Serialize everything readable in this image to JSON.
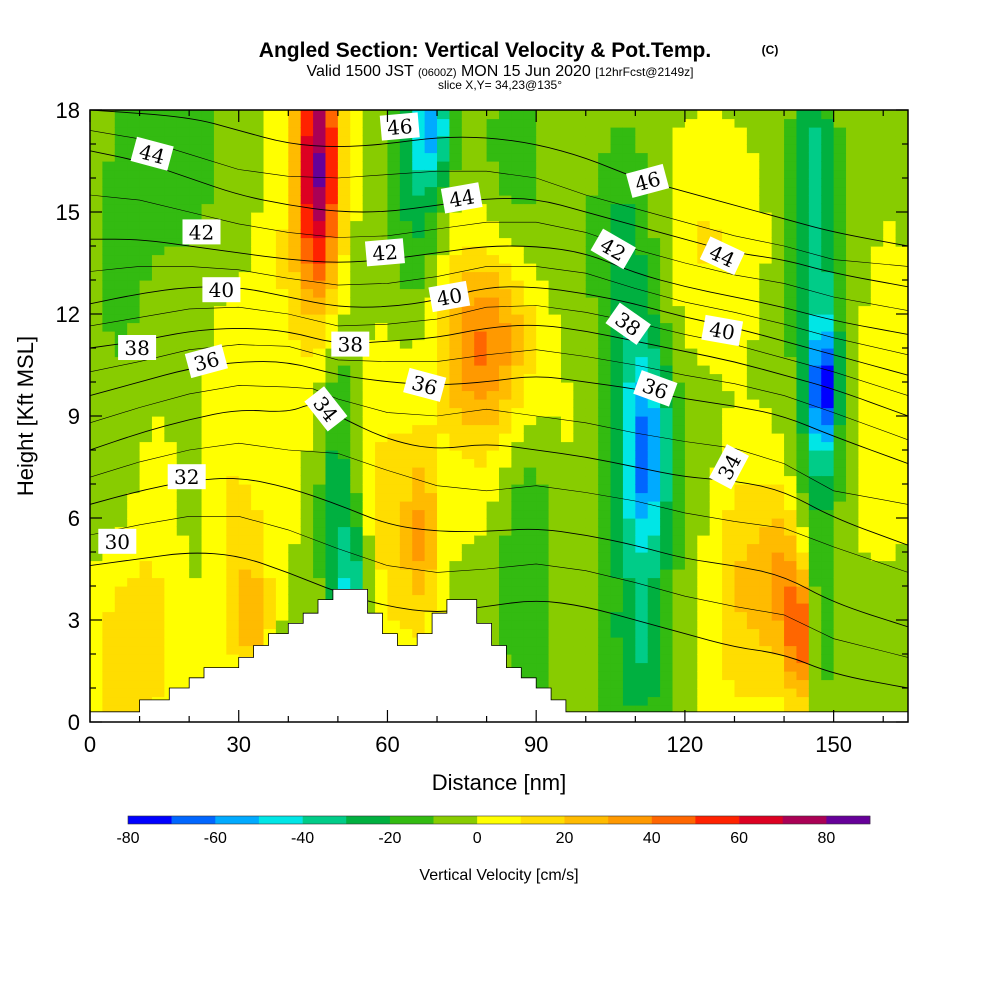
{
  "title": {
    "main": "Angled Section: Vertical Velocity & Pot.Temp.",
    "copyright": "(C)",
    "valid_prefix": "Valid 1500 JST",
    "utc": "(0600Z)",
    "valid_date": "MON 15 Jun 2020",
    "forecast": "[12hrFcst@2149z]",
    "slice": "slice X,Y= 34,23@135°"
  },
  "chart_data": {
    "type": "heatmap",
    "xlabel": "Distance [nm]",
    "ylabel": "Height [Kft MSL]",
    "xlim": [
      0,
      165
    ],
    "ylim": [
      0,
      18
    ],
    "x_ticks": [
      0,
      30,
      60,
      90,
      120,
      150
    ],
    "y_ticks": [
      0,
      3,
      6,
      9,
      12,
      15,
      18
    ],
    "colorbar": {
      "label": "Vertical Velocity [cm/s]",
      "bounds": [
        -80,
        -70,
        -60,
        -50,
        -40,
        -30,
        -20,
        -10,
        0,
        10,
        20,
        30,
        40,
        50,
        60,
        70,
        80,
        90
      ],
      "colors": [
        "#0000ff",
        "#0066ff",
        "#00aaff",
        "#00e6e6",
        "#00cc88",
        "#00b040",
        "#33bb11",
        "#88cc00",
        "#ffff00",
        "#ffdd00",
        "#ffbb00",
        "#ff9900",
        "#ff6600",
        "#ff2200",
        "#dd0022",
        "#aa0055",
        "#660099"
      ],
      "tick_values": [
        -80,
        -60,
        -40,
        -20,
        0,
        20,
        40,
        60,
        80
      ]
    },
    "velocity_features": [
      {
        "x": 46,
        "y": 17.2,
        "sx": 3,
        "sy": 2.6,
        "value": 58
      },
      {
        "x": 46,
        "y": 14.8,
        "sx": 3.5,
        "sy": 2.5,
        "value": 38
      },
      {
        "x": 66,
        "y": 15.5,
        "sx": 4,
        "sy": 3,
        "value": -25
      },
      {
        "x": 69,
        "y": 17.5,
        "sx": 3,
        "sy": 1.2,
        "value": -40
      },
      {
        "x": 85,
        "y": 16.5,
        "sx": 5,
        "sy": 2,
        "value": -12
      },
      {
        "x": 80,
        "y": 11.2,
        "sx": 7,
        "sy": 1.8,
        "value": 32
      },
      {
        "x": 78,
        "y": 9.5,
        "sx": 8,
        "sy": 3,
        "value": 15
      },
      {
        "x": 112,
        "y": 8,
        "sx": 3.5,
        "sy": 2.2,
        "value": -45
      },
      {
        "x": 110,
        "y": 6.5,
        "sx": 5,
        "sy": 4.5,
        "value": -20
      },
      {
        "x": 108,
        "y": 14,
        "sx": 4,
        "sy": 2.5,
        "value": -15
      },
      {
        "x": 132,
        "y": 4.5,
        "sx": 5,
        "sy": 2.7,
        "value": 25
      },
      {
        "x": 140,
        "y": 4,
        "sx": 3,
        "sy": 2,
        "value": 30
      },
      {
        "x": 143,
        "y": 2.5,
        "sx": 1.4,
        "sy": 1.5,
        "value": 52
      },
      {
        "x": 148,
        "y": 9.8,
        "sx": 1.8,
        "sy": 1.3,
        "value": -55
      },
      {
        "x": 147,
        "y": 9.5,
        "sx": 3.5,
        "sy": 4.5,
        "value": -28
      },
      {
        "x": 146,
        "y": 16.5,
        "sx": 3,
        "sy": 2.5,
        "value": -22
      },
      {
        "x": 50,
        "y": 7,
        "sx": 3,
        "sy": 3,
        "value": -25
      },
      {
        "x": 53,
        "y": 3.8,
        "sx": 2.5,
        "sy": 1.5,
        "value": -35
      },
      {
        "x": 60,
        "y": 6,
        "sx": 5,
        "sy": 3.3,
        "value": 18
      },
      {
        "x": 67,
        "y": 5.5,
        "sx": 2.5,
        "sy": 1.7,
        "value": 30
      },
      {
        "x": 88,
        "y": 5.5,
        "sx": 4,
        "sy": 3,
        "value": -20
      },
      {
        "x": 20,
        "y": 16,
        "sx": 6,
        "sy": 2.5,
        "value": -12
      },
      {
        "x": 8,
        "y": 14,
        "sx": 6,
        "sy": 4,
        "value": -12
      },
      {
        "x": 28,
        "y": 7,
        "sx": 4,
        "sy": 4,
        "value": 12
      },
      {
        "x": 13,
        "y": 5.5,
        "sx": 4,
        "sy": 4,
        "value": 14
      },
      {
        "x": 33,
        "y": 3,
        "sx": 3,
        "sy": 2,
        "value": 24
      },
      {
        "x": 6,
        "y": 2,
        "sx": 4,
        "sy": 2,
        "value": 18
      },
      {
        "x": 124,
        "y": 14,
        "sx": 6,
        "sy": 2.5,
        "value": 10
      },
      {
        "x": 78,
        "y": 2,
        "sx": 4,
        "sy": 1,
        "value": -6
      },
      {
        "x": 160,
        "y": 12,
        "sx": 5,
        "sy": 4,
        "value": 8
      },
      {
        "x": 112,
        "y": 2,
        "sx": 4,
        "sy": 1.5,
        "value": -15
      },
      {
        "x": 38,
        "y": 13,
        "sx": 4,
        "sy": 3,
        "value": 12
      }
    ],
    "theta_contours": [
      {
        "value": 30,
        "points": [
          [
            0,
            4.6
          ],
          [
            10,
            4.8
          ],
          [
            20,
            5.0
          ],
          [
            30,
            4.9
          ],
          [
            40,
            4.4
          ],
          [
            50,
            3.8
          ],
          [
            60,
            3.4
          ],
          [
            70,
            3.2
          ],
          [
            80,
            3.4
          ],
          [
            90,
            3.6
          ],
          [
            100,
            3.4
          ],
          [
            110,
            3.0
          ],
          [
            120,
            2.6
          ],
          [
            130,
            2.2
          ],
          [
            140,
            2.0
          ],
          [
            150,
            1.4
          ],
          [
            165,
            1.0
          ]
        ],
        "label": true
      },
      {
        "value": 32,
        "points": [
          [
            0,
            6.4
          ],
          [
            10,
            6.8
          ],
          [
            20,
            7.1
          ],
          [
            30,
            7.2
          ],
          [
            40,
            6.9
          ],
          [
            50,
            6.4
          ],
          [
            60,
            5.8
          ],
          [
            70,
            5.6
          ],
          [
            80,
            5.6
          ],
          [
            90,
            5.7
          ],
          [
            100,
            5.5
          ],
          [
            110,
            5.2
          ],
          [
            120,
            4.8
          ],
          [
            130,
            4.6
          ],
          [
            140,
            4.3
          ],
          [
            150,
            3.5
          ],
          [
            165,
            2.8
          ]
        ],
        "label": true
      },
      {
        "value": 34,
        "points": [
          [
            0,
            8.0
          ],
          [
            10,
            8.5
          ],
          [
            20,
            8.9
          ],
          [
            30,
            9.2
          ],
          [
            40,
            9.1
          ],
          [
            45,
            9.4
          ],
          [
            50,
            9.0
          ],
          [
            60,
            8.3
          ],
          [
            70,
            8.0
          ],
          [
            80,
            8.2
          ],
          [
            90,
            8.0
          ],
          [
            100,
            7.8
          ],
          [
            110,
            7.5
          ],
          [
            120,
            7.2
          ],
          [
            130,
            7.1
          ],
          [
            140,
            6.8
          ],
          [
            150,
            6.0
          ],
          [
            165,
            5.2
          ]
        ],
        "label": true
      },
      {
        "value": 36,
        "points": [
          [
            0,
            9.6
          ],
          [
            10,
            10.0
          ],
          [
            20,
            10.4
          ],
          [
            30,
            10.6
          ],
          [
            40,
            10.6
          ],
          [
            50,
            10.2
          ],
          [
            60,
            10.0
          ],
          [
            70,
            9.9
          ],
          [
            80,
            10.0
          ],
          [
            90,
            10.2
          ],
          [
            100,
            10.0
          ],
          [
            110,
            9.8
          ],
          [
            120,
            9.5
          ],
          [
            130,
            9.3
          ],
          [
            140,
            9.0
          ],
          [
            150,
            8.4
          ],
          [
            165,
            7.6
          ]
        ],
        "label": true
      },
      {
        "value": 38,
        "points": [
          [
            0,
            11.0
          ],
          [
            10,
            11.2
          ],
          [
            20,
            11.5
          ],
          [
            30,
            11.6
          ],
          [
            40,
            11.5
          ],
          [
            50,
            11.1
          ],
          [
            60,
            11.2
          ],
          [
            70,
            11.3
          ],
          [
            80,
            11.6
          ],
          [
            90,
            11.7
          ],
          [
            100,
            11.5
          ],
          [
            110,
            11.2
          ],
          [
            120,
            10.9
          ],
          [
            130,
            10.6
          ],
          [
            140,
            10.2
          ],
          [
            150,
            9.8
          ],
          [
            165,
            9.0
          ]
        ],
        "label": true
      },
      {
        "value": 40,
        "points": [
          [
            0,
            12.3
          ],
          [
            10,
            12.6
          ],
          [
            20,
            12.8
          ],
          [
            30,
            12.8
          ],
          [
            40,
            12.5
          ],
          [
            50,
            12.2
          ],
          [
            60,
            12.2
          ],
          [
            70,
            12.4
          ],
          [
            80,
            12.8
          ],
          [
            90,
            12.8
          ],
          [
            100,
            12.6
          ],
          [
            110,
            12.3
          ],
          [
            120,
            11.9
          ],
          [
            130,
            11.6
          ],
          [
            140,
            11.2
          ],
          [
            150,
            10.8
          ],
          [
            165,
            10.2
          ]
        ],
        "label": true
      },
      {
        "value": 42,
        "points": [
          [
            0,
            14.2
          ],
          [
            10,
            14.2
          ],
          [
            20,
            14.0
          ],
          [
            30,
            13.8
          ],
          [
            40,
            13.6
          ],
          [
            50,
            13.5
          ],
          [
            60,
            13.6
          ],
          [
            70,
            13.8
          ],
          [
            80,
            14.0
          ],
          [
            90,
            14.0
          ],
          [
            100,
            13.8
          ],
          [
            110,
            13.2
          ],
          [
            120,
            12.8
          ],
          [
            130,
            12.5
          ],
          [
            140,
            12.2
          ],
          [
            150,
            11.8
          ],
          [
            165,
            11.4
          ]
        ],
        "label": true
      },
      {
        "value": 44,
        "points": [
          [
            0,
            16.8
          ],
          [
            10,
            16.5
          ],
          [
            20,
            16.0
          ],
          [
            30,
            15.5
          ],
          [
            40,
            15.2
          ],
          [
            50,
            15.0
          ],
          [
            60,
            15.0
          ],
          [
            70,
            15.2
          ],
          [
            80,
            15.4
          ],
          [
            90,
            15.4
          ],
          [
            100,
            15.0
          ],
          [
            110,
            14.6
          ],
          [
            120,
            14.2
          ],
          [
            130,
            13.8
          ],
          [
            140,
            13.6
          ],
          [
            150,
            13.2
          ],
          [
            165,
            12.8
          ]
        ],
        "label": true
      },
      {
        "value": 46,
        "points": [
          [
            0,
            18.0
          ],
          [
            20,
            17.8
          ],
          [
            30,
            17.4
          ],
          [
            40,
            17.0
          ],
          [
            50,
            16.9
          ],
          [
            60,
            17.0
          ],
          [
            70,
            17.2
          ],
          [
            80,
            17.2
          ],
          [
            90,
            17.0
          ],
          [
            100,
            16.6
          ],
          [
            110,
            16.0
          ],
          [
            120,
            15.6
          ],
          [
            130,
            15.2
          ],
          [
            140,
            14.8
          ],
          [
            150,
            14.4
          ],
          [
            165,
            14.0
          ]
        ],
        "label": true
      }
    ],
    "contour_labels": [
      {
        "text": "30",
        "x": 5.5,
        "y": 5.3,
        "angle": 0
      },
      {
        "text": "32",
        "x": 19.5,
        "y": 7.2,
        "angle": 0
      },
      {
        "text": "34",
        "x": 47.5,
        "y": 9.2,
        "angle": 52
      },
      {
        "text": "36",
        "x": 23.5,
        "y": 10.6,
        "angle": -15
      },
      {
        "text": "38",
        "x": 9.5,
        "y": 11.0,
        "angle": 0
      },
      {
        "text": "40",
        "x": 26.5,
        "y": 12.7,
        "angle": 0
      },
      {
        "text": "42",
        "x": 22.5,
        "y": 14.4,
        "angle": 0
      },
      {
        "text": "44",
        "x": 12.5,
        "y": 16.7,
        "angle": 15
      },
      {
        "text": "38",
        "x": 52.5,
        "y": 11.1,
        "angle": 0
      },
      {
        "text": "42",
        "x": 59.5,
        "y": 13.8,
        "angle": -5
      },
      {
        "text": "46",
        "x": 62.5,
        "y": 17.5,
        "angle": -5
      },
      {
        "text": "36",
        "x": 67.5,
        "y": 9.9,
        "angle": 15
      },
      {
        "text": "40",
        "x": 72.5,
        "y": 12.5,
        "angle": -10
      },
      {
        "text": "44",
        "x": 75.0,
        "y": 15.4,
        "angle": -10
      },
      {
        "text": "42",
        "x": 105.5,
        "y": 13.9,
        "angle": 30
      },
      {
        "text": "46",
        "x": 112.5,
        "y": 15.9,
        "angle": -15
      },
      {
        "text": "38",
        "x": 108.5,
        "y": 11.7,
        "angle": 35
      },
      {
        "text": "36",
        "x": 114.0,
        "y": 9.8,
        "angle": 20
      },
      {
        "text": "44",
        "x": 127.5,
        "y": 13.7,
        "angle": 25
      },
      {
        "text": "40",
        "x": 127.5,
        "y": 11.5,
        "angle": 10
      },
      {
        "text": "34",
        "x": 129.0,
        "y": 7.5,
        "angle": -62
      }
    ],
    "terrain": [
      [
        0,
        0.3
      ],
      [
        10,
        0.3
      ],
      [
        10,
        0.65
      ],
      [
        16,
        0.65
      ],
      [
        16,
        1.0
      ],
      [
        20,
        1.0
      ],
      [
        20,
        1.3
      ],
      [
        23,
        1.3
      ],
      [
        23,
        1.6
      ],
      [
        30,
        1.6
      ],
      [
        30,
        1.9
      ],
      [
        33,
        1.9
      ],
      [
        33,
        2.25
      ],
      [
        36,
        2.25
      ],
      [
        36,
        2.6
      ],
      [
        40,
        2.6
      ],
      [
        40,
        2.9
      ],
      [
        43,
        2.9
      ],
      [
        43,
        3.2
      ],
      [
        46,
        3.2
      ],
      [
        46,
        3.6
      ],
      [
        49,
        3.6
      ],
      [
        49,
        3.9
      ],
      [
        56,
        3.9
      ],
      [
        56,
        3.2
      ],
      [
        59,
        3.2
      ],
      [
        59,
        2.6
      ],
      [
        62,
        2.6
      ],
      [
        62,
        2.25
      ],
      [
        66,
        2.25
      ],
      [
        66,
        2.6
      ],
      [
        69,
        2.6
      ],
      [
        69,
        3.2
      ],
      [
        72,
        3.2
      ],
      [
        72,
        3.6
      ],
      [
        78,
        3.6
      ],
      [
        78,
        2.9
      ],
      [
        81,
        2.9
      ],
      [
        81,
        2.25
      ],
      [
        84,
        2.25
      ],
      [
        84,
        1.6
      ],
      [
        87,
        1.6
      ],
      [
        87,
        1.3
      ],
      [
        90,
        1.3
      ],
      [
        90,
        1.0
      ],
      [
        93,
        1.0
      ],
      [
        93,
        0.65
      ],
      [
        96,
        0.65
      ],
      [
        96,
        0.3
      ],
      [
        165,
        0.3
      ]
    ]
  }
}
